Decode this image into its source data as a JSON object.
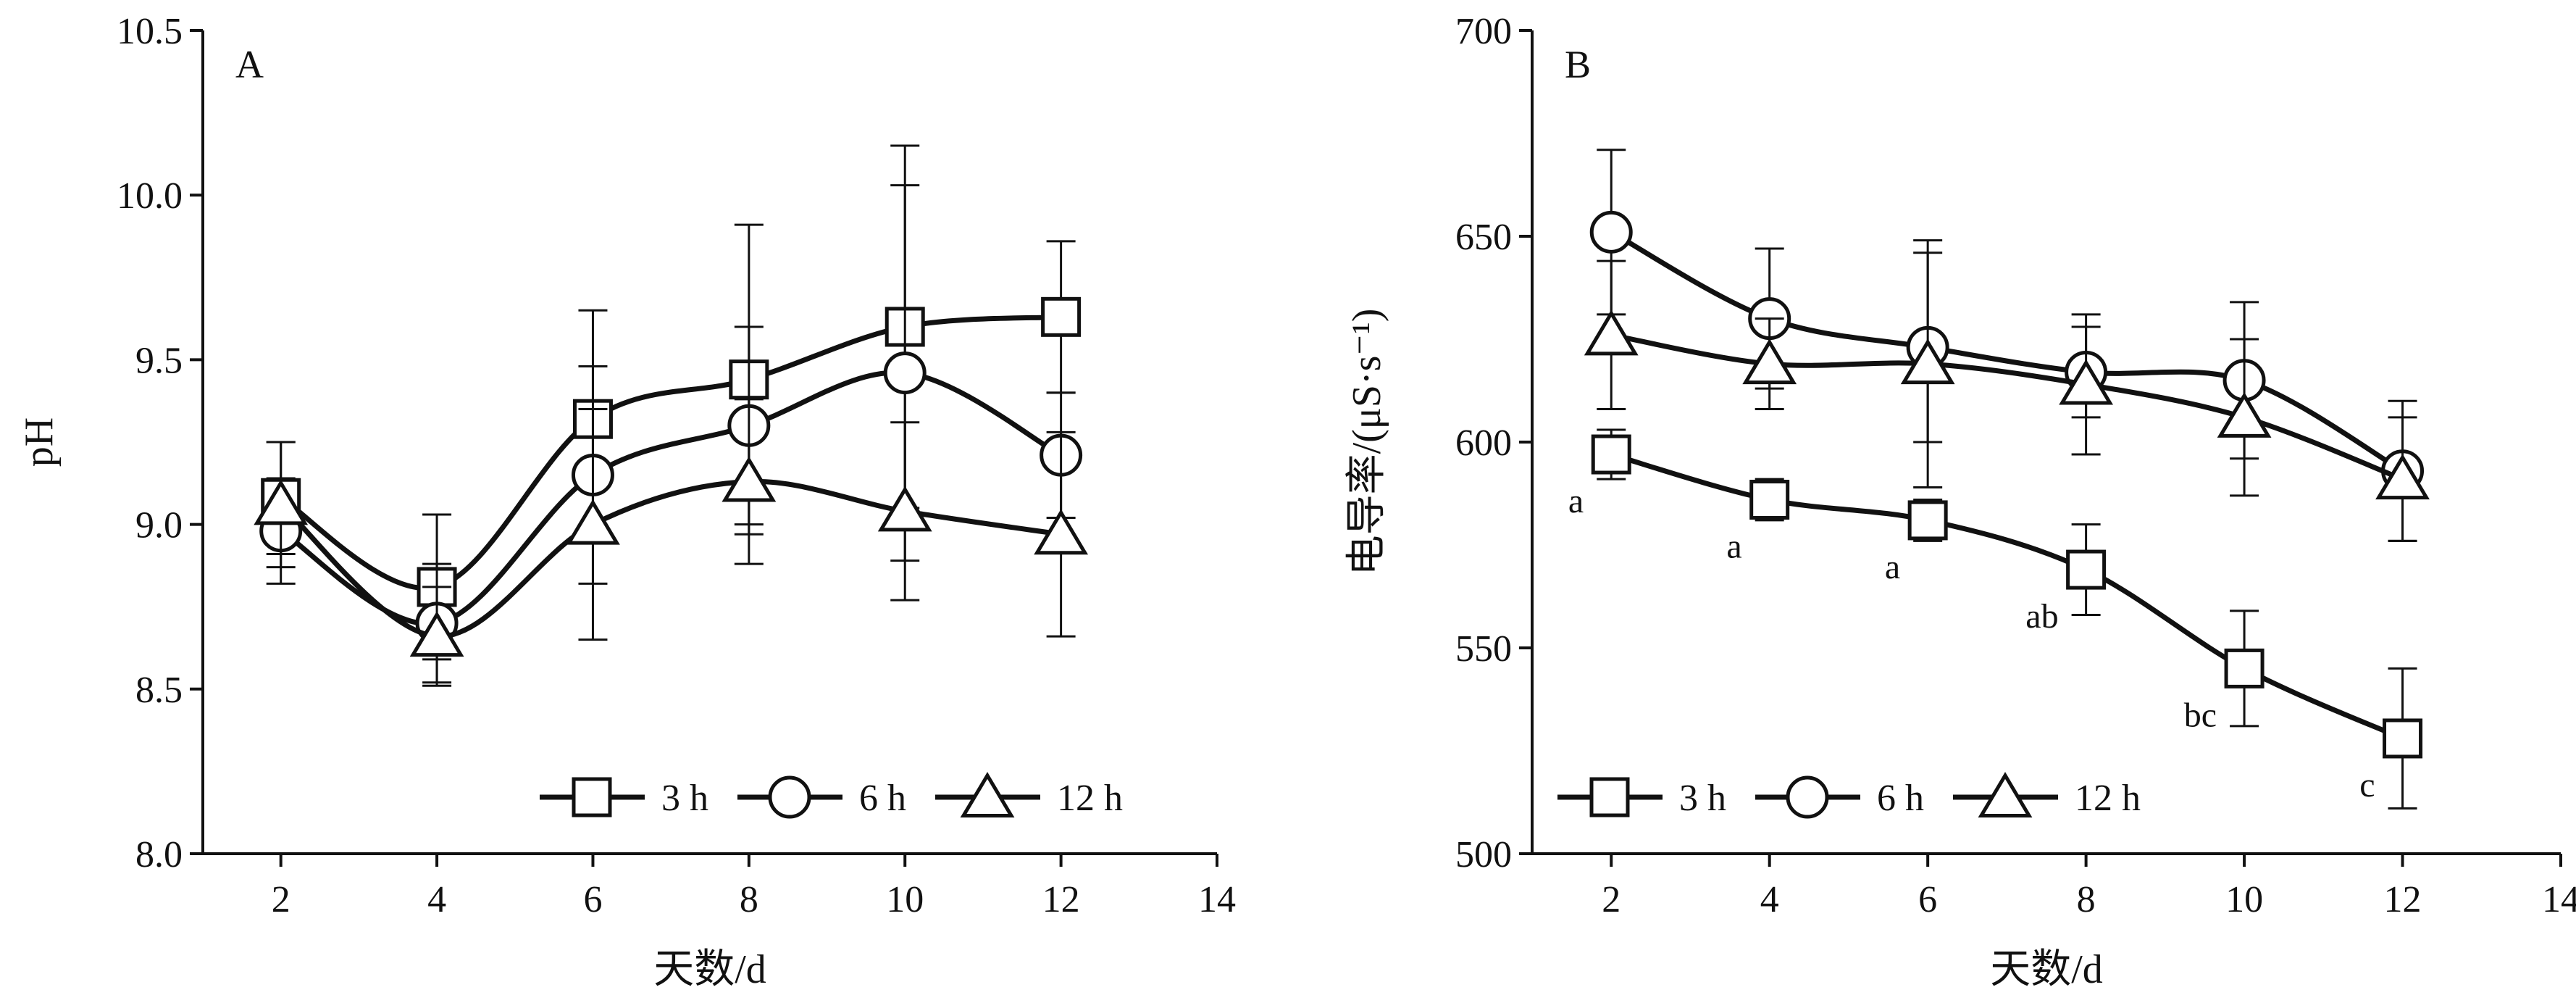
{
  "chart_data": [
    {
      "type": "line",
      "panel_label": "A",
      "xlabel": "天数/d",
      "ylabel": "pH",
      "xlim": [
        1,
        14
      ],
      "ylim": [
        8.0,
        10.5
      ],
      "xticks": [
        2,
        4,
        6,
        8,
        10,
        12,
        14
      ],
      "yticks": [
        8.0,
        8.5,
        9.0,
        9.5,
        10.0,
        10.5
      ],
      "ytick_labels": [
        "8.0",
        "8.5",
        "9.0",
        "9.5",
        "10.0",
        "10.5"
      ],
      "grid": false,
      "legend_position": "bottom-right",
      "series": [
        {
          "name": "3 h",
          "marker": "square",
          "x": [
            2,
            4,
            6,
            8,
            10,
            12
          ],
          "y": [
            9.08,
            8.81,
            9.32,
            9.44,
            9.6,
            9.63
          ],
          "err": [
            0.17,
            0.22,
            0.33,
            0.47,
            0.55,
            0.23
          ]
        },
        {
          "name": "6 h",
          "marker": "circle",
          "x": [
            2,
            4,
            6,
            8,
            10,
            12
          ],
          "y": [
            8.98,
            8.7,
            9.15,
            9.3,
            9.46,
            9.21
          ],
          "err": [
            0.16,
            0.18,
            0.33,
            0.3,
            0.57,
            0.19
          ]
        },
        {
          "name": "12 h",
          "marker": "triangle",
          "x": [
            2,
            4,
            6,
            8,
            10,
            12
          ],
          "y": [
            9.06,
            8.66,
            9.0,
            9.13,
            9.04,
            8.97
          ],
          "err": [
            0.19,
            0.15,
            0.35,
            0.25,
            0.27,
            0.31
          ]
        }
      ]
    },
    {
      "type": "line",
      "panel_label": "B",
      "xlabel": "天数/d",
      "ylabel": "电导率/(μS·s⁻¹)",
      "xlim": [
        1,
        14
      ],
      "ylim": [
        500,
        700
      ],
      "xticks": [
        2,
        4,
        6,
        8,
        10,
        12,
        14
      ],
      "yticks": [
        500,
        550,
        600,
        650,
        700
      ],
      "ytick_labels": [
        "500",
        "550",
        "600",
        "650",
        "700"
      ],
      "grid": false,
      "legend_position": "bottom-left",
      "series": [
        {
          "name": "3 h",
          "marker": "square",
          "x": [
            2,
            4,
            6,
            8,
            10,
            12
          ],
          "y": [
            597,
            586,
            581,
            569,
            545,
            528
          ],
          "err": [
            6,
            5,
            5,
            11,
            14,
            17
          ]
        },
        {
          "name": "6 h",
          "marker": "circle",
          "x": [
            2,
            4,
            6,
            8,
            10,
            12
          ],
          "y": [
            651,
            630,
            623,
            617,
            615,
            593
          ],
          "err": [
            20,
            17,
            23,
            11,
            19,
            17
          ]
        },
        {
          "name": "12 h",
          "marker": "triangle",
          "x": [
            2,
            4,
            6,
            8,
            10,
            12
          ],
          "y": [
            626,
            619,
            619,
            614,
            606,
            591
          ],
          "err": [
            18,
            11,
            30,
            17,
            19,
            15
          ]
        }
      ],
      "annotations": [
        {
          "text": "a",
          "x": 2,
          "y": 597
        },
        {
          "text": "a",
          "x": 4,
          "y": 586
        },
        {
          "text": "a",
          "x": 6,
          "y": 581
        },
        {
          "text": "ab",
          "x": 8,
          "y": 569
        },
        {
          "text": "bc",
          "x": 10,
          "y": 545
        },
        {
          "text": "c",
          "x": 12,
          "y": 528
        }
      ]
    }
  ]
}
